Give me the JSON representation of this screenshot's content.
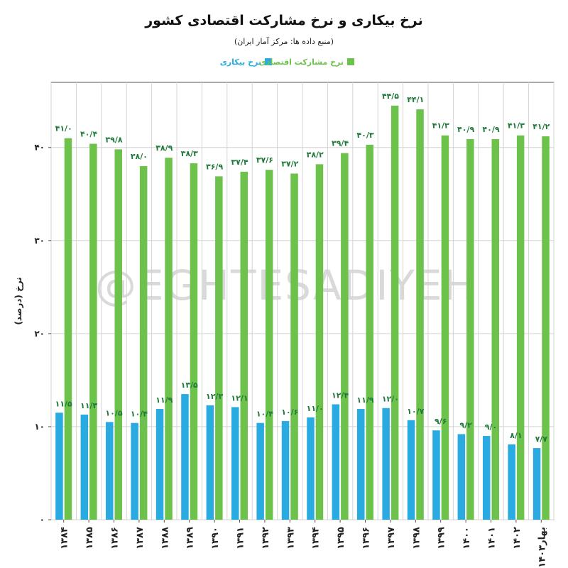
{
  "watermark": "@EGHTESADIYEH",
  "chart_data": {
    "type": "bar",
    "title": "نرخ بیکاری و نرخ مشارکت اقتصادی کشور",
    "subtitle": "(منبع داده ها: مرکز آمار ایران)",
    "xlabel": "",
    "ylabel": "نرخ (درصد)",
    "ylim": [
      0,
      47
    ],
    "yticks": [
      0,
      10,
      20,
      30,
      40
    ],
    "ytick_labels": [
      "۰",
      "۱۰",
      "۲۰",
      "۳۰",
      "۴۰"
    ],
    "grid": true,
    "legend": "top",
    "categories": [
      "۱۳۸۴",
      "۱۳۸۵",
      "۱۳۸۶",
      "۱۳۸۷",
      "۱۳۸۸",
      "۱۳۸۹",
      "۱۳۹۰",
      "۱۳۹۱",
      "۱۳۹۲",
      "۱۳۹۳",
      "۱۳۹۴",
      "۱۳۹۵",
      "۱۳۹۶",
      "۱۳۹۷",
      "۱۳۹۸",
      "۱۳۹۹",
      "۱۴۰۰",
      "۱۴۰۱",
      "۱۴۰۲",
      "بهار۱۴۰۳"
    ],
    "series": [
      {
        "name": "نرخ بیکاری",
        "color": "#29abe2",
        "values": [
          11.5,
          11.3,
          10.5,
          10.4,
          11.9,
          13.5,
          12.3,
          12.1,
          10.4,
          10.6,
          11.0,
          12.4,
          11.9,
          12.0,
          10.7,
          9.6,
          9.2,
          9.0,
          8.1,
          7.7
        ],
        "labels": [
          "۱۱/۵",
          "۱۱/۳",
          "۱۰/۵",
          "۱۰/۴",
          "۱۱/۹",
          "۱۳/۵",
          "۱۲/۳",
          "۱۲/۱",
          "۱۰/۴",
          "۱۰/۶",
          "۱۱/۰",
          "۱۲/۴",
          "۱۱/۹",
          "۱۲/۰",
          "۱۰/۷",
          "۹/۶",
          "۹/۲",
          "۹/۰",
          "۸/۱",
          "۷/۷"
        ]
      },
      {
        "name": "نرخ مشارکت اقتصادی",
        "color": "#6cc24a",
        "values": [
          41.0,
          40.4,
          39.8,
          38.0,
          38.9,
          38.3,
          36.9,
          37.4,
          37.6,
          37.2,
          38.2,
          39.4,
          40.3,
          44.5,
          44.1,
          41.3,
          40.9,
          40.9,
          41.3,
          41.2
        ],
        "labels": [
          "۴۱/۰",
          "۴۰/۴",
          "۳۹/۸",
          "۳۸/۰",
          "۳۸/۹",
          "۳۸/۳",
          "۳۶/۹",
          "۳۷/۴",
          "۳۷/۶",
          "۳۷/۲",
          "۳۸/۲",
          "۳۹/۴",
          "۴۰/۳",
          "۴۴/۵",
          "۴۴/۱",
          "۴۱/۳",
          "۴۰/۹",
          "۴۰/۹",
          "۴۱/۳",
          "۴۱/۲"
        ]
      }
    ]
  }
}
